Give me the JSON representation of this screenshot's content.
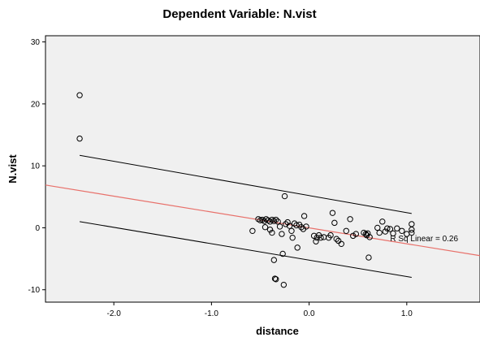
{
  "chart_data": {
    "type": "scatter",
    "title": "Dependent Variable: N.vist",
    "xlabel": "distance",
    "ylabel": "N.vist",
    "xlim": [
      -2.7,
      1.75
    ],
    "ylim": [
      -12,
      31
    ],
    "x_ticks": [
      -2.0,
      -1.0,
      0.0,
      1.0
    ],
    "x_tick_labels": [
      "-2.0",
      "-1.0",
      "0.0",
      "1.0"
    ],
    "y_ticks": [
      -10,
      0,
      10,
      20,
      30
    ],
    "y_tick_labels": [
      "-10",
      "0",
      "10",
      "20",
      "30"
    ],
    "grid": false,
    "colors": {
      "plot_background": "#f0f0f0",
      "fit_line": "#e8706a",
      "interval_lines": "#000000",
      "points": "#000000"
    },
    "fit_line": {
      "x": [
        -2.7,
        1.75
      ],
      "y": [
        6.9,
        -4.5
      ]
    },
    "prediction_interval_upper": {
      "x": [
        -2.35,
        1.05
      ],
      "y": [
        11.7,
        2.3
      ]
    },
    "prediction_interval_lower": {
      "x": [
        -2.35,
        1.05
      ],
      "y": [
        1.0,
        -8.0
      ]
    },
    "annotation": "R Sq Linear = 0.26",
    "points": [
      {
        "x": -2.35,
        "y": 21.4
      },
      {
        "x": -2.35,
        "y": 14.4
      },
      {
        "x": -0.58,
        "y": -0.5
      },
      {
        "x": -0.52,
        "y": 1.4
      },
      {
        "x": -0.5,
        "y": 1.2
      },
      {
        "x": -0.48,
        "y": 1.3
      },
      {
        "x": -0.46,
        "y": 1.1
      },
      {
        "x": -0.44,
        "y": 1.4
      },
      {
        "x": -0.42,
        "y": 1.2
      },
      {
        "x": -0.4,
        "y": 1.0
      },
      {
        "x": -0.38,
        "y": 1.3
      },
      {
        "x": -0.36,
        "y": 1.1
      },
      {
        "x": -0.34,
        "y": 1.3
      },
      {
        "x": -0.32,
        "y": 1.0
      },
      {
        "x": -0.45,
        "y": 0.1
      },
      {
        "x": -0.4,
        "y": -0.3
      },
      {
        "x": -0.38,
        "y": -0.8
      },
      {
        "x": -0.36,
        "y": -5.2
      },
      {
        "x": -0.35,
        "y": -8.2
      },
      {
        "x": -0.34,
        "y": -8.3
      },
      {
        "x": -0.3,
        "y": 0.2
      },
      {
        "x": -0.28,
        "y": -1.0
      },
      {
        "x": -0.27,
        "y": -4.2
      },
      {
        "x": -0.26,
        "y": -9.2
      },
      {
        "x": -0.25,
        "y": 5.1
      },
      {
        "x": -0.24,
        "y": 0.6
      },
      {
        "x": -0.22,
        "y": 0.9
      },
      {
        "x": -0.2,
        "y": 0.3
      },
      {
        "x": -0.18,
        "y": -0.5
      },
      {
        "x": -0.17,
        "y": -1.6
      },
      {
        "x": -0.15,
        "y": 0.7
      },
      {
        "x": -0.13,
        "y": 0.4
      },
      {
        "x": -0.12,
        "y": -3.2
      },
      {
        "x": -0.1,
        "y": 0.5
      },
      {
        "x": -0.08,
        "y": 0.1
      },
      {
        "x": -0.06,
        "y": -0.2
      },
      {
        "x": -0.05,
        "y": 1.9
      },
      {
        "x": -0.03,
        "y": 0.2
      },
      {
        "x": 0.05,
        "y": -1.3
      },
      {
        "x": 0.07,
        "y": -2.2
      },
      {
        "x": 0.08,
        "y": -1.6
      },
      {
        "x": 0.1,
        "y": -1.2
      },
      {
        "x": 0.12,
        "y": -1.6
      },
      {
        "x": 0.15,
        "y": -1.5
      },
      {
        "x": 0.2,
        "y": -1.6
      },
      {
        "x": 0.22,
        "y": -1.2
      },
      {
        "x": 0.24,
        "y": 2.4
      },
      {
        "x": 0.26,
        "y": 0.8
      },
      {
        "x": 0.28,
        "y": -1.8
      },
      {
        "x": 0.3,
        "y": -2.1
      },
      {
        "x": 0.33,
        "y": -2.6
      },
      {
        "x": 0.38,
        "y": -0.5
      },
      {
        "x": 0.42,
        "y": 1.4
      },
      {
        "x": 0.45,
        "y": -1.3
      },
      {
        "x": 0.48,
        "y": -1.0
      },
      {
        "x": 0.56,
        "y": -0.8
      },
      {
        "x": 0.58,
        "y": -1.0
      },
      {
        "x": 0.59,
        "y": -1.2
      },
      {
        "x": 0.6,
        "y": -0.9
      },
      {
        "x": 0.61,
        "y": -4.8
      },
      {
        "x": 0.62,
        "y": -1.5
      },
      {
        "x": 0.7,
        "y": 0.0
      },
      {
        "x": 0.72,
        "y": -0.8
      },
      {
        "x": 0.75,
        "y": 1.0
      },
      {
        "x": 0.78,
        "y": -0.6
      },
      {
        "x": 0.8,
        "y": -0.1
      },
      {
        "x": 0.83,
        "y": -0.2
      },
      {
        "x": 0.86,
        "y": -0.9
      },
      {
        "x": 0.9,
        "y": -0.1
      },
      {
        "x": 0.95,
        "y": -0.5
      },
      {
        "x": 1.0,
        "y": -1.0
      },
      {
        "x": 1.05,
        "y": 0.6
      },
      {
        "x": 1.05,
        "y": -0.3
      },
      {
        "x": 1.05,
        "y": -0.8
      }
    ]
  }
}
